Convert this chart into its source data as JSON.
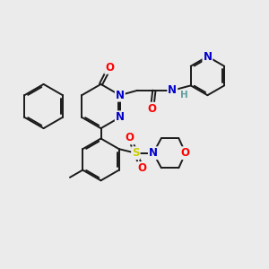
{
  "background_color": "#ebebeb",
  "atom_colors": {
    "N": "#0000cc",
    "O": "#ff0000",
    "S": "#cccc00",
    "H": "#5f9ea0"
  },
  "bond_color": "#1a1a1a",
  "bond_width": 1.4,
  "dbo": 0.055
}
